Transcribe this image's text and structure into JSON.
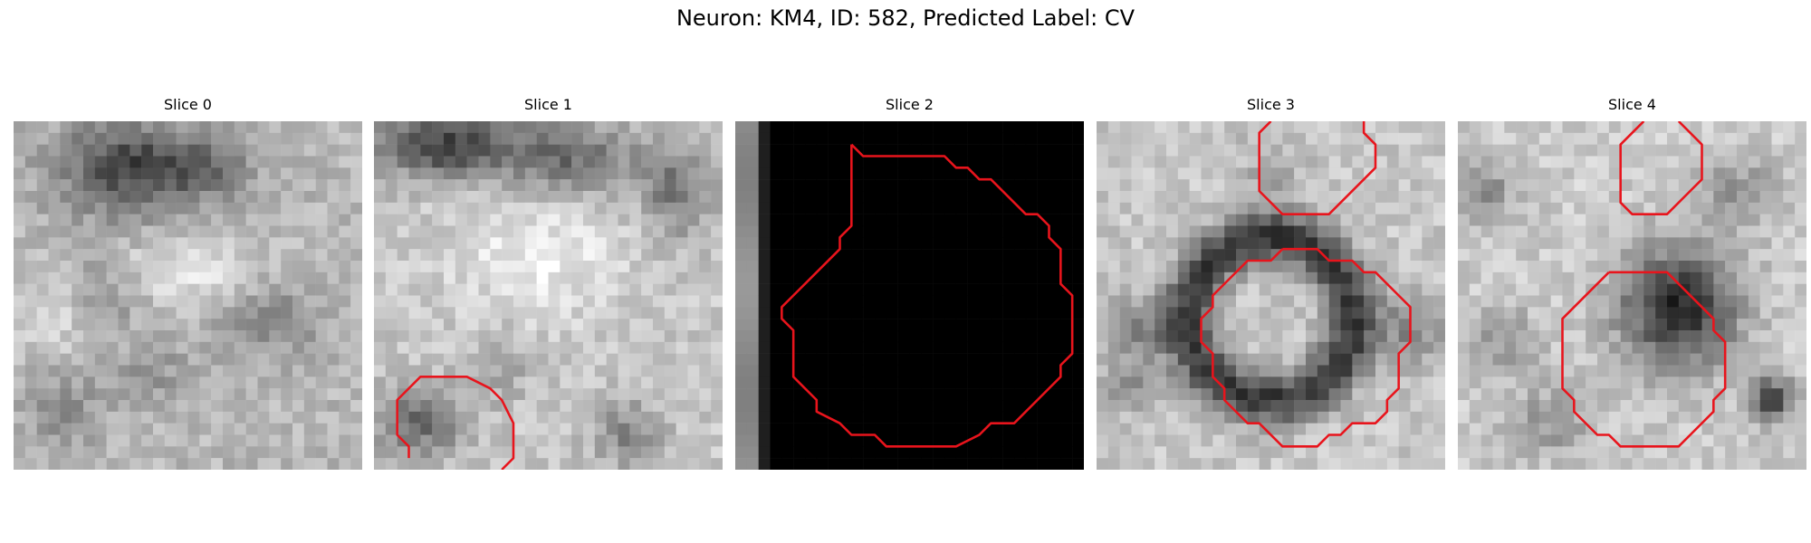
{
  "figure": {
    "title": "Neuron: KM4, ID: 582, Predicted Label: CV"
  },
  "panels": [
    {
      "title": "Slice 0"
    },
    {
      "title": "Slice 1"
    },
    {
      "title": "Slice 2"
    },
    {
      "title": "Slice 3"
    },
    {
      "title": "Slice 4"
    }
  ],
  "colors": {
    "contour": "#e8141c",
    "background": "#ffffff"
  }
}
